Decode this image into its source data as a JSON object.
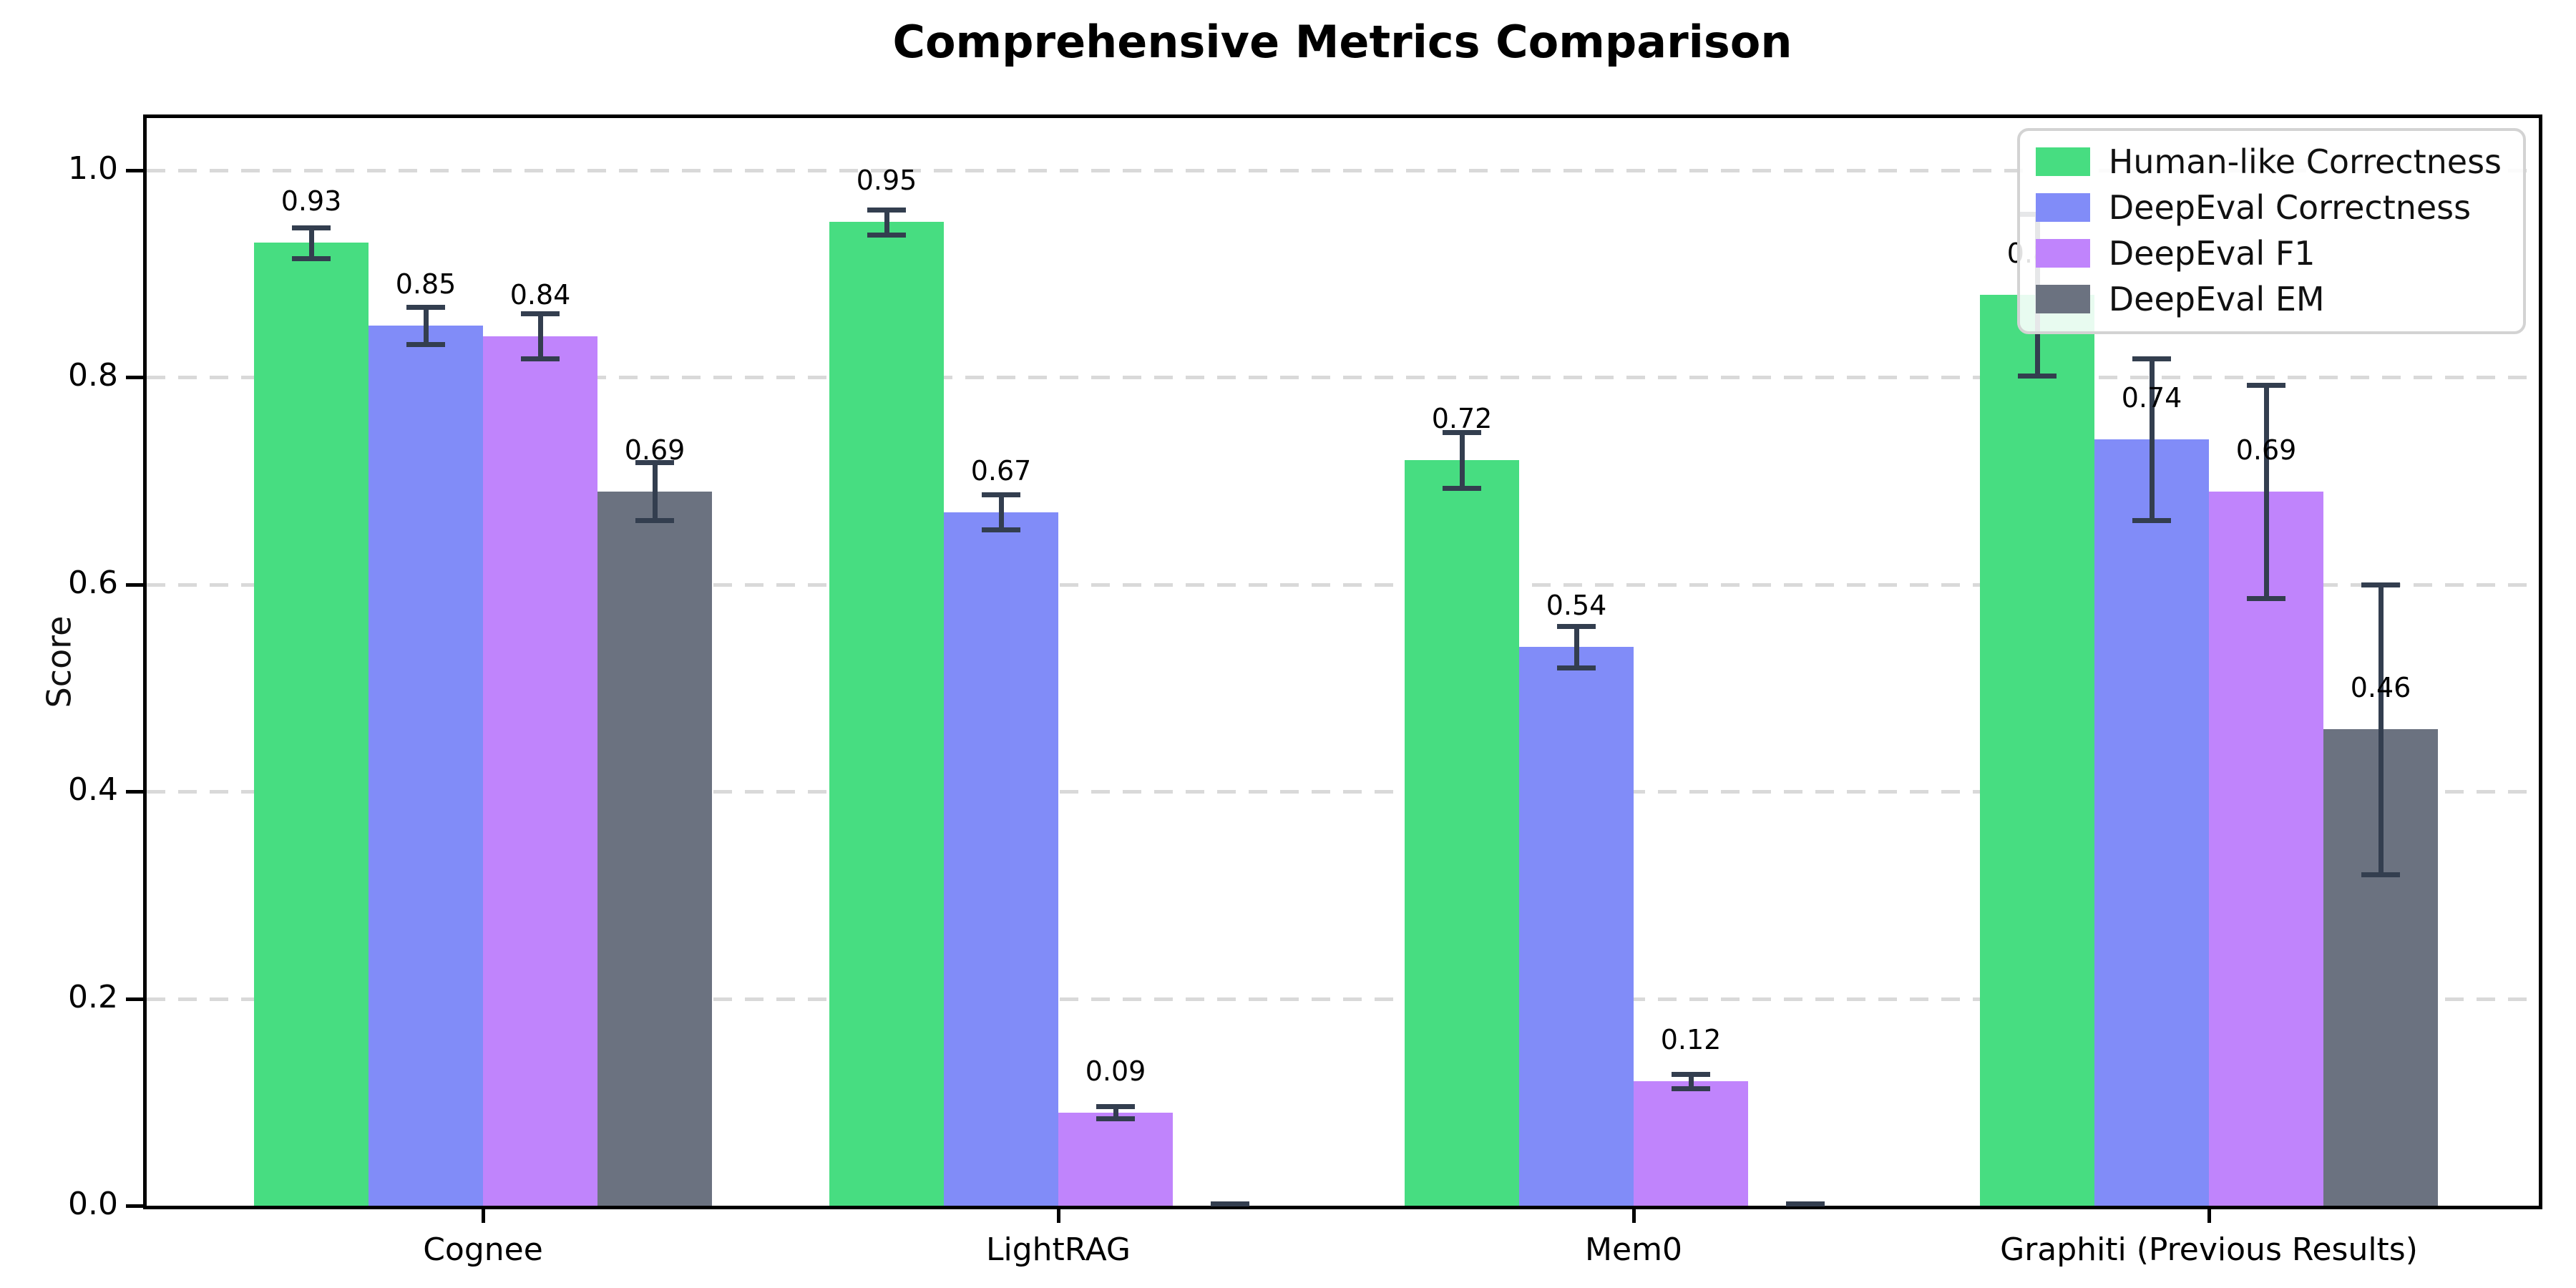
{
  "title": "Comprehensive Metrics Comparison",
  "chart_data": {
    "type": "bar",
    "title": "Comprehensive Metrics Comparison",
    "xlabel": "",
    "ylabel": "Score",
    "ylim": [
      0,
      1.05
    ],
    "yticks": [
      "0.0",
      "0.2",
      "0.4",
      "0.6",
      "0.8",
      "1.0"
    ],
    "grid": "horizontal-dashed",
    "legend_position": "upper-right",
    "error_bar_color": "#333e4f",
    "categories": [
      "Cognee",
      "LightRAG",
      "Mem0",
      "Graphiti (Previous Results)"
    ],
    "series": [
      {
        "name": "Human-like Correctness",
        "color": "#47dd81",
        "values": [
          0.93,
          0.95,
          0.72,
          0.88
        ],
        "errors": [
          0.015,
          0.012,
          0.027,
          0.078
        ],
        "labels": [
          "0.93",
          "0.95",
          "0.72",
          "0.88"
        ]
      },
      {
        "name": "DeepEval Correctness",
        "color": "#818cf8",
        "values": [
          0.85,
          0.67,
          0.54,
          0.74
        ],
        "errors": [
          0.018,
          0.017,
          0.02,
          0.078
        ],
        "labels": [
          "0.85",
          "0.67",
          "0.54",
          "0.74"
        ]
      },
      {
        "name": "DeepEval F1",
        "color": "#c084fc",
        "values": [
          0.84,
          0.09,
          0.12,
          0.69
        ],
        "errors": [
          0.022,
          0.006,
          0.007,
          0.103
        ],
        "labels": [
          "0.84",
          "0.09",
          "0.12",
          "0.69"
        ]
      },
      {
        "name": "DeepEval EM",
        "color": "#6b7280",
        "values": [
          0.69,
          0.0,
          0.0,
          0.46
        ],
        "errors": [
          0.028,
          0.002,
          0.002,
          0.14
        ],
        "labels": [
          "0.69",
          "",
          "",
          "0.46"
        ]
      }
    ]
  }
}
